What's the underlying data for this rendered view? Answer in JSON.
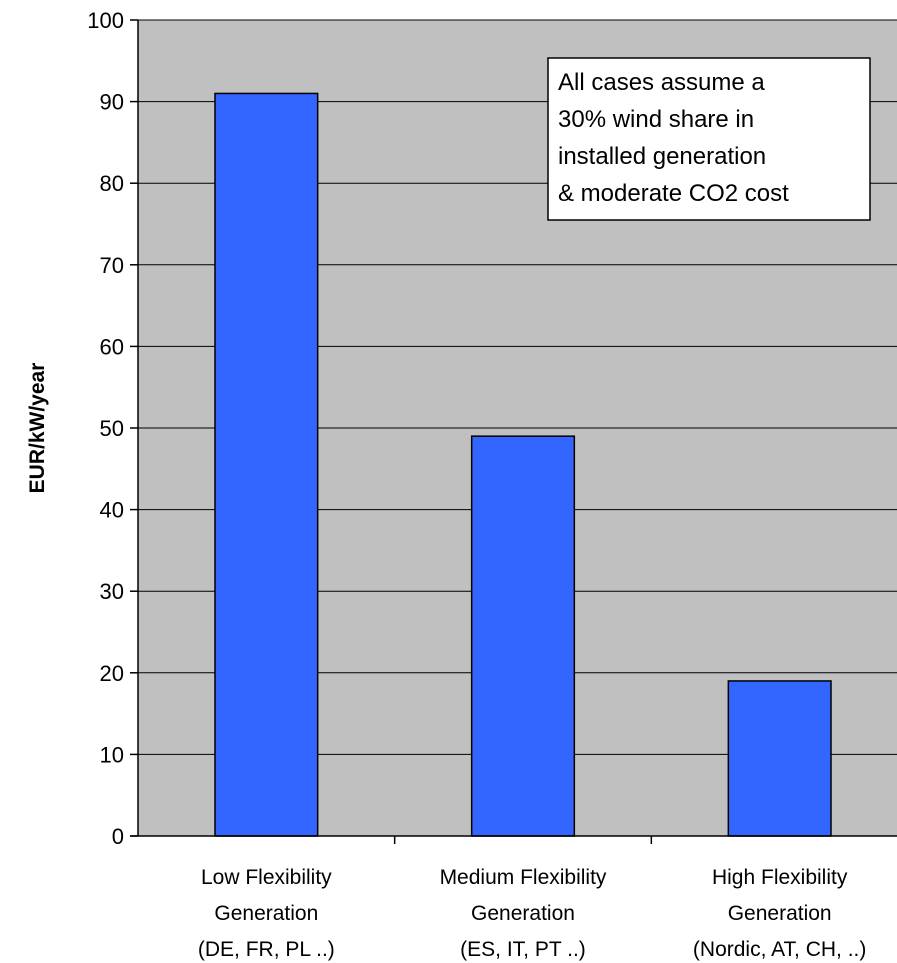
{
  "chart_data": {
    "type": "bar",
    "ylabel": "EUR/kW/year",
    "xlabel": "",
    "ylim": [
      0,
      100
    ],
    "yticks": [
      0,
      10,
      20,
      30,
      40,
      50,
      60,
      70,
      80,
      90,
      100
    ],
    "grid": true,
    "categories": [
      [
        "Low Flexibility",
        "Generation",
        "(DE, FR, PL ..)"
      ],
      [
        "Medium Flexibility",
        "Generation",
        "(ES, IT, PT ..)"
      ],
      [
        "High Flexibility",
        "Generation",
        "(Nordic, AT, CH, ..)"
      ]
    ],
    "values": [
      91,
      49,
      19
    ],
    "annotation": [
      "All cases assume a",
      "30% wind share in",
      "installed generation",
      "& moderate CO2 cost"
    ],
    "colors": {
      "bar_fill": "#3366ff",
      "bar_stroke": "#000000",
      "plot_background": "#c0c0c0",
      "gridline": "#000000",
      "annotation_fill": "#ffffff"
    }
  }
}
